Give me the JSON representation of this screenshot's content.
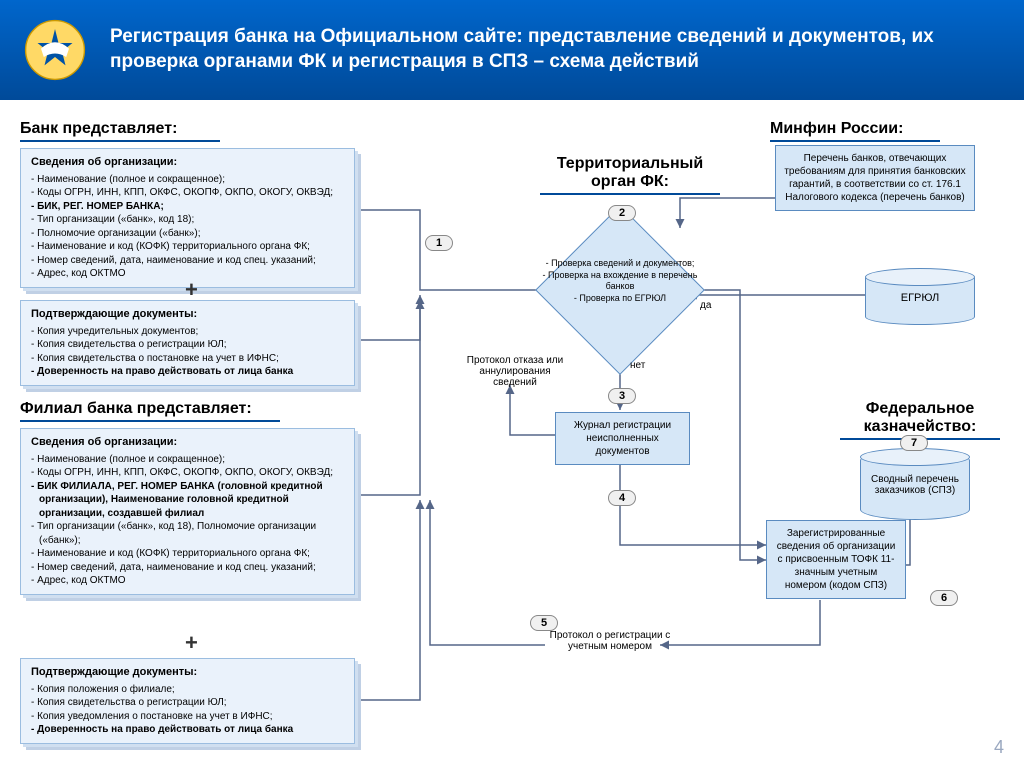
{
  "header": {
    "title": "Регистрация банка на Официальном сайте: представление сведений и документов, их проверка органами ФК и регистрация в СПЗ – схема действий"
  },
  "sections": {
    "bank": "Банк представляет:",
    "branch": "Филиал банка представляет:",
    "minfin": "Минфин России:",
    "territorial": "Территориальный орган ФК:",
    "fedkaz": "Федеральное казначейство:"
  },
  "bank_card1": {
    "title": "Сведения об организации:",
    "items": [
      "Наименование (полное и сокращенное);",
      "Коды ОГРН, ИНН, КПП, ОКФС, ОКОПФ, ОКПО, ОКОГУ, ОКВЭД;",
      "БИК, РЕГ. НОМЕР БАНКА;",
      "Тип организации («банк», код 18);",
      "Полномочие организации («банк»);",
      "Наименование и код (КОФК) территориального органа ФК;",
      "Номер сведений, дата, наименование и код спец. указаний;",
      "Адрес, код ОКТМО"
    ],
    "bolds": [
      2
    ]
  },
  "bank_card2": {
    "title": "Подтверждающие документы:",
    "items": [
      "Копия учредительных документов;",
      "Копия свидетельства о регистрации ЮЛ;",
      "Копия свидетельства о постановке на учет в ИФНС;",
      "Доверенность на право действовать от лица банка"
    ],
    "bolds": [
      3
    ]
  },
  "branch_card1": {
    "title": "Сведения об организации:",
    "items": [
      "Наименование (полное и сокращенное);",
      "Коды ОГРН, ИНН, КПП, ОКФС, ОКОПФ, ОКПО, ОКОГУ, ОКВЭД;",
      "БИК ФИЛИАЛА, РЕГ. НОМЕР БАНКА (головной кредитной организации), Наименование головной кредитной организации, создавшей филиал",
      "Тип организации («банк», код 18), Полномочие организации («банк»);",
      "Наименование и код (КОФК) территориального органа ФК;",
      "Номер сведений, дата, наименование и код спец. указаний;",
      "Адрес, код ОКТМО"
    ],
    "bolds": [
      2
    ]
  },
  "branch_card2": {
    "title": "Подтверждающие документы:",
    "items": [
      "Копия положения о филиале;",
      "Копия свидетельства о регистрации ЮЛ;",
      "Копия уведомления о постановке на учет в ИФНС;",
      "Доверенность на право действовать от лица банка"
    ],
    "bolds": [
      3
    ]
  },
  "minfin_box": "Перечень банков, отвечающих требованиям для принятия банковских гарантий, в соответствии со ст. 176.1 Налогового кодекса (перечень банков)",
  "diamond_text": "- Проверка сведений и документов;\n- Проверка на вхождение в перечень банков\n- Проверка по ЕГРЮЛ",
  "labels": {
    "yes": "да",
    "no": "нет",
    "protocol_refuse": "Протокол отказа или аннулирования сведений",
    "journal": "Журнал регистрации неисполненных документов",
    "registered": "Зарегистрированные сведения об организации с присвоенным ТОФК 11-значным учетным номером  (кодом СПЗ)",
    "protocol_reg": "Протокол о регистрации с учетным номером",
    "egrul": "ЕГРЮЛ",
    "spz": "Сводный перечень заказчиков (СПЗ)"
  },
  "steps": [
    "1",
    "2",
    "3",
    "4",
    "5",
    "6",
    "7"
  ],
  "style": {
    "header_gradient_top": "#0066cc",
    "header_gradient_bottom": "#004a99",
    "card_bg": "#eaf2fb",
    "card_border": "#9bbde0",
    "box_bg": "#d6e7f7",
    "box_border": "#5a8bc0",
    "arrow_color": "#556688",
    "page_bg": "#ffffff",
    "title_rule_color": "#004a99",
    "font_main": 10,
    "font_title": 16
  },
  "page_number": "4"
}
